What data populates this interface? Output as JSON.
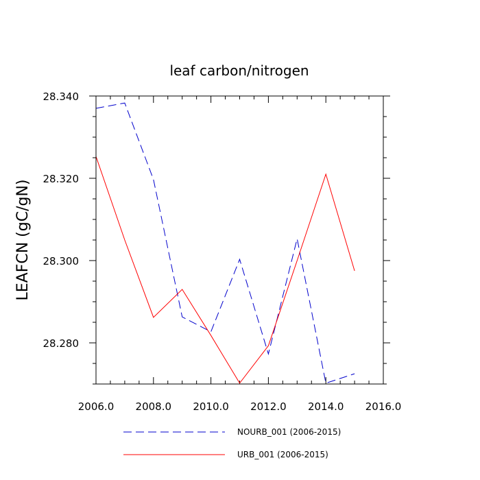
{
  "chart_data": {
    "type": "line",
    "title": "leaf carbon/nitrogen",
    "xlabel": "",
    "ylabel": "LEAFCN  (gC/gN)",
    "xlim": [
      2006,
      2016
    ],
    "ylim": [
      28.27,
      28.34
    ],
    "xticks": [
      2006,
      2008,
      2010,
      2012,
      2014,
      2016
    ],
    "xtick_labels": [
      "2006.0",
      "2008.0",
      "2010.0",
      "2012.0",
      "2014.0",
      "2016.0"
    ],
    "yticks": [
      28.28,
      28.3,
      28.32,
      28.34
    ],
    "ytick_labels": [
      "28.280",
      "28.300",
      "28.320",
      "28.340"
    ],
    "grid": false,
    "legend_position": "bottom",
    "x": [
      2006,
      2007,
      2008,
      2009,
      2010,
      2011,
      2012,
      2013,
      2014,
      2015
    ],
    "series": [
      {
        "name": "NOURB_001 (2006-2015)",
        "color": "#0000cc",
        "dash": "dashed",
        "values": [
          28.337,
          28.3383,
          28.3197,
          28.2863,
          28.2827,
          28.3003,
          28.2773,
          28.3053,
          28.2702,
          28.2725
        ]
      },
      {
        "name": "URB_001 (2006-2015)",
        "color": "#ff0000",
        "dash": "solid",
        "values": [
          28.3253,
          28.305,
          28.2862,
          28.293,
          28.2818,
          28.2702,
          28.2793,
          28.3,
          28.321,
          28.2975
        ]
      }
    ]
  }
}
